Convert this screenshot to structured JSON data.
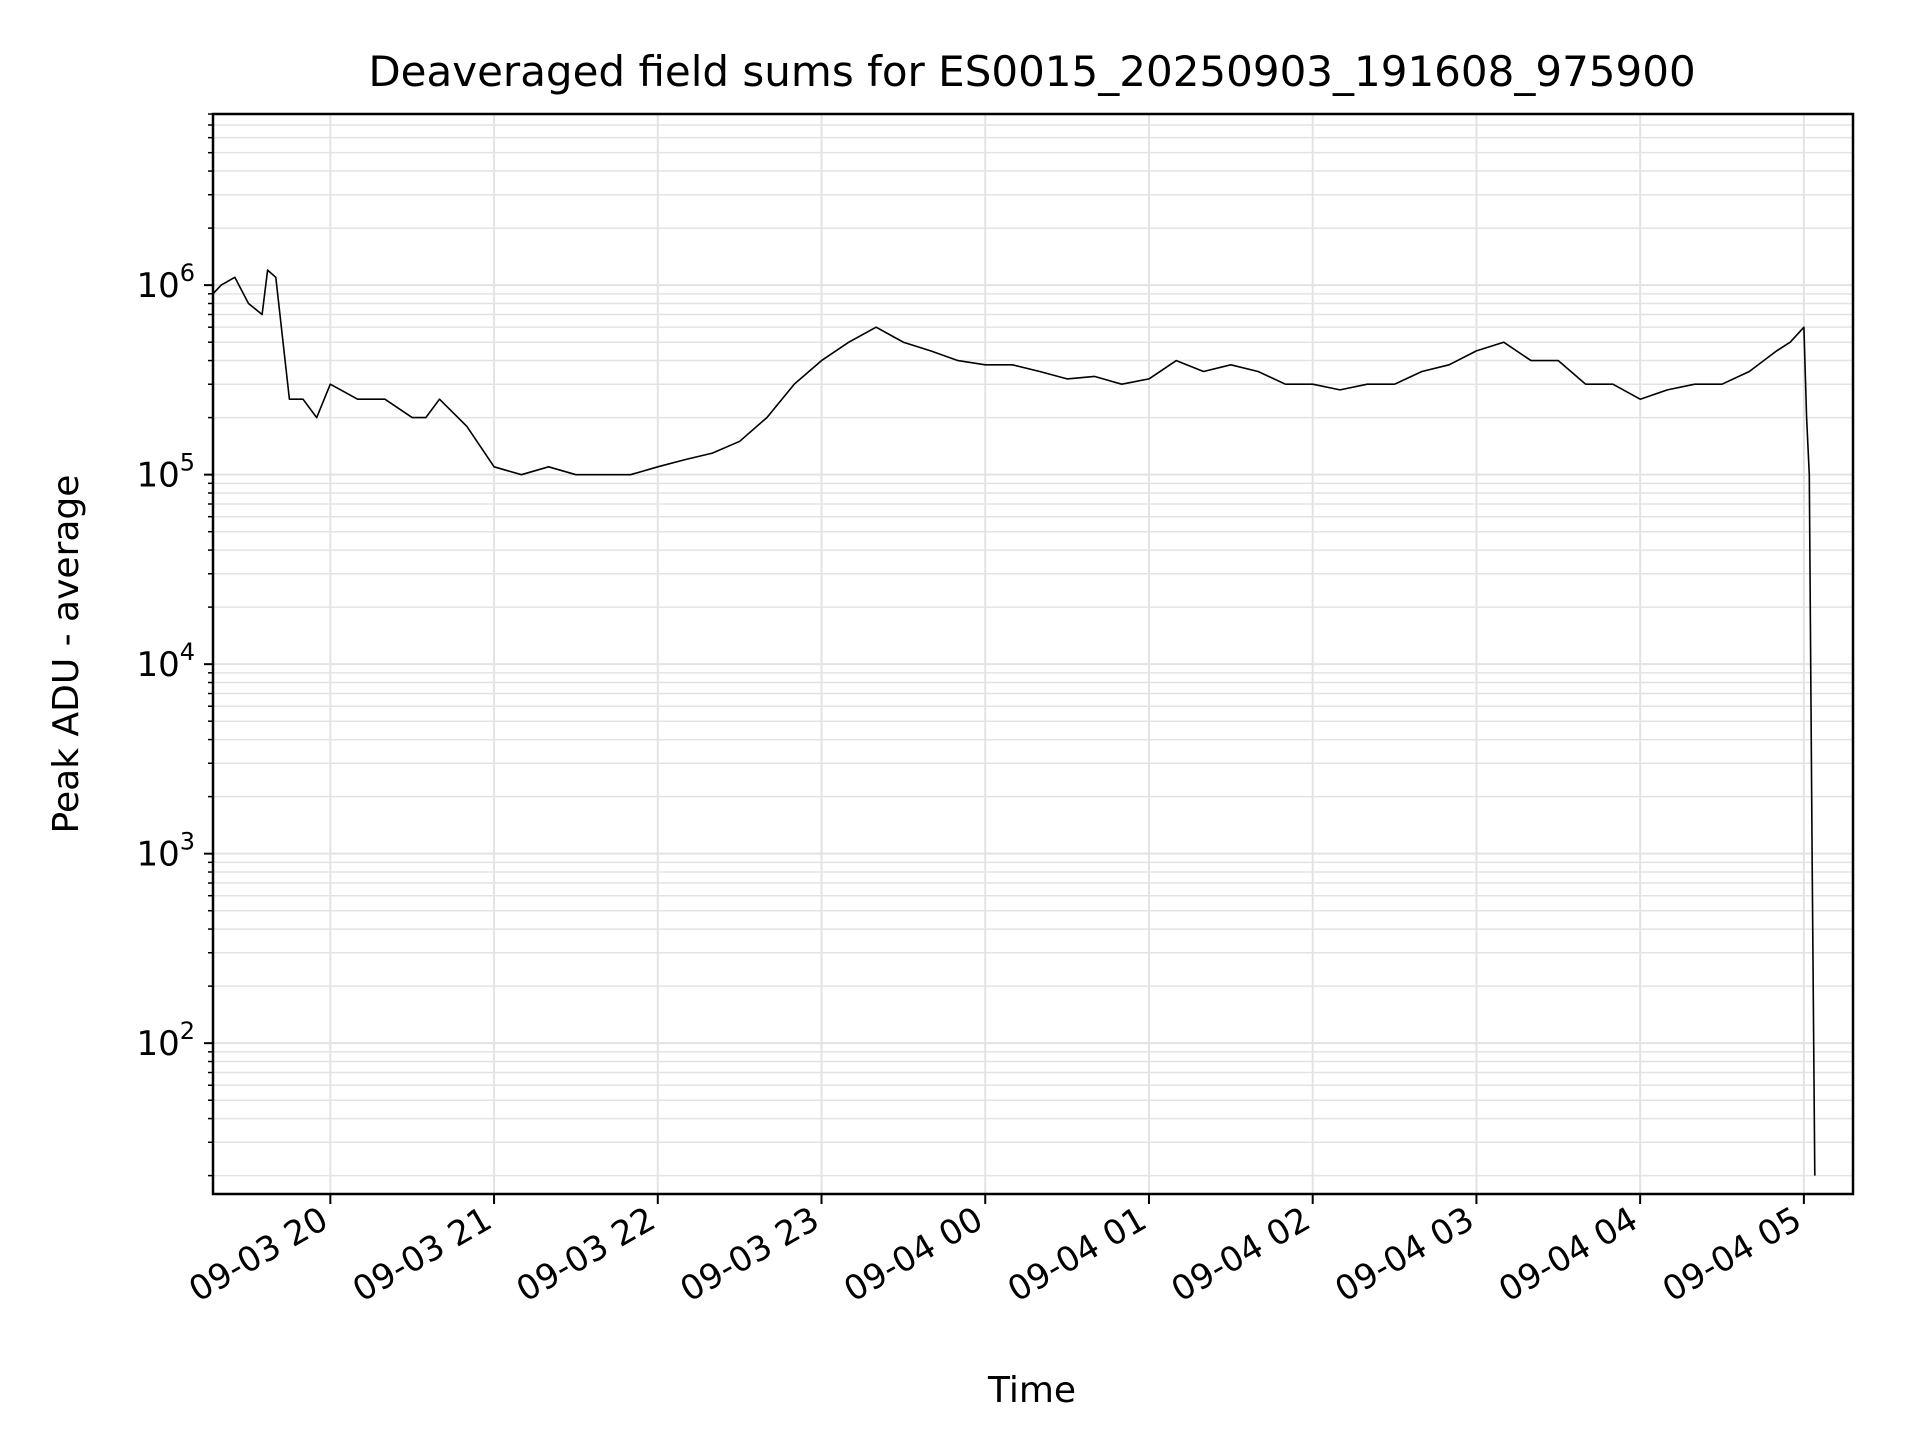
{
  "chart_data": {
    "type": "line",
    "title": "Deaveraged field sums for ES0015_20250903_191608_975900",
    "xlabel": "Time",
    "ylabel": "Peak ADU - average",
    "yscale": "log",
    "xlim": [
      "2025-09-03 19:17",
      "2025-09-04 05:18"
    ],
    "ylim": [
      16,
      8000000
    ],
    "grid": true,
    "grid_minor": true,
    "line_color": "#000000",
    "grid_color": "#e3e3e3",
    "x_ticks": [
      {
        "value": "2025-09-03 20:00",
        "label": "09-03 20"
      },
      {
        "value": "2025-09-03 21:00",
        "label": "09-03 21"
      },
      {
        "value": "2025-09-03 22:00",
        "label": "09-03 22"
      },
      {
        "value": "2025-09-03 23:00",
        "label": "09-03 23"
      },
      {
        "value": "2025-09-04 00:00",
        "label": "09-04 00"
      },
      {
        "value": "2025-09-04 01:00",
        "label": "09-04 01"
      },
      {
        "value": "2025-09-04 02:00",
        "label": "09-04 02"
      },
      {
        "value": "2025-09-04 03:00",
        "label": "09-04 03"
      },
      {
        "value": "2025-09-04 04:00",
        "label": "09-04 04"
      },
      {
        "value": "2025-09-04 05:00",
        "label": "09-04 05"
      }
    ],
    "y_ticks": [
      {
        "value": 100,
        "base": "10",
        "exp": "2"
      },
      {
        "value": 1000,
        "base": "10",
        "exp": "3"
      },
      {
        "value": 10000,
        "base": "10",
        "exp": "4"
      },
      {
        "value": 100000,
        "base": "10",
        "exp": "5"
      },
      {
        "value": 1000000,
        "base": "10",
        "exp": "6"
      }
    ],
    "series": [
      {
        "x": [
          "2025-09-03 19:17",
          "2025-09-03 19:20",
          "2025-09-03 19:25",
          "2025-09-03 19:30",
          "2025-09-03 19:35",
          "2025-09-03 19:37",
          "2025-09-03 19:40",
          "2025-09-03 19:45",
          "2025-09-03 19:50",
          "2025-09-03 19:55",
          "2025-09-03 20:00",
          "2025-09-03 20:10",
          "2025-09-03 20:20",
          "2025-09-03 20:30",
          "2025-09-03 20:35",
          "2025-09-03 20:40",
          "2025-09-03 20:50",
          "2025-09-03 21:00",
          "2025-09-03 21:10",
          "2025-09-03 21:20",
          "2025-09-03 21:30",
          "2025-09-03 21:40",
          "2025-09-03 21:50",
          "2025-09-03 22:00",
          "2025-09-03 22:10",
          "2025-09-03 22:20",
          "2025-09-03 22:30",
          "2025-09-03 22:40",
          "2025-09-03 22:50",
          "2025-09-03 23:00",
          "2025-09-03 23:10",
          "2025-09-03 23:20",
          "2025-09-03 23:30",
          "2025-09-03 23:40",
          "2025-09-03 23:50",
          "2025-09-04 00:00",
          "2025-09-04 00:10",
          "2025-09-04 00:20",
          "2025-09-04 00:30",
          "2025-09-04 00:40",
          "2025-09-04 00:50",
          "2025-09-04 01:00",
          "2025-09-04 01:10",
          "2025-09-04 01:20",
          "2025-09-04 01:30",
          "2025-09-04 01:40",
          "2025-09-04 01:50",
          "2025-09-04 02:00",
          "2025-09-04 02:10",
          "2025-09-04 02:20",
          "2025-09-04 02:30",
          "2025-09-04 02:40",
          "2025-09-04 02:50",
          "2025-09-04 03:00",
          "2025-09-04 03:10",
          "2025-09-04 03:20",
          "2025-09-04 03:30",
          "2025-09-04 03:40",
          "2025-09-04 03:50",
          "2025-09-04 04:00",
          "2025-09-04 04:10",
          "2025-09-04 04:20",
          "2025-09-04 04:30",
          "2025-09-04 04:40",
          "2025-09-04 04:50",
          "2025-09-04 04:55",
          "2025-09-04 05:00",
          "2025-09-04 05:01",
          "2025-09-04 05:02",
          "2025-09-04 05:03",
          "2025-09-04 05:04"
        ],
        "y": [
          900000,
          1000000,
          1100000,
          800000,
          700000,
          1200000,
          1100000,
          250000,
          250000,
          200000,
          300000,
          250000,
          250000,
          200000,
          200000,
          250000,
          180000,
          110000,
          100000,
          110000,
          100000,
          100000,
          100000,
          110000,
          120000,
          130000,
          150000,
          200000,
          300000,
          400000,
          500000,
          600000,
          500000,
          450000,
          400000,
          380000,
          380000,
          350000,
          320000,
          330000,
          300000,
          320000,
          400000,
          350000,
          380000,
          350000,
          300000,
          300000,
          280000,
          300000,
          300000,
          350000,
          380000,
          450000,
          500000,
          400000,
          400000,
          300000,
          300000,
          250000,
          280000,
          300000,
          300000,
          350000,
          450000,
          500000,
          600000,
          200000,
          100000,
          1000,
          20
        ]
      }
    ]
  }
}
